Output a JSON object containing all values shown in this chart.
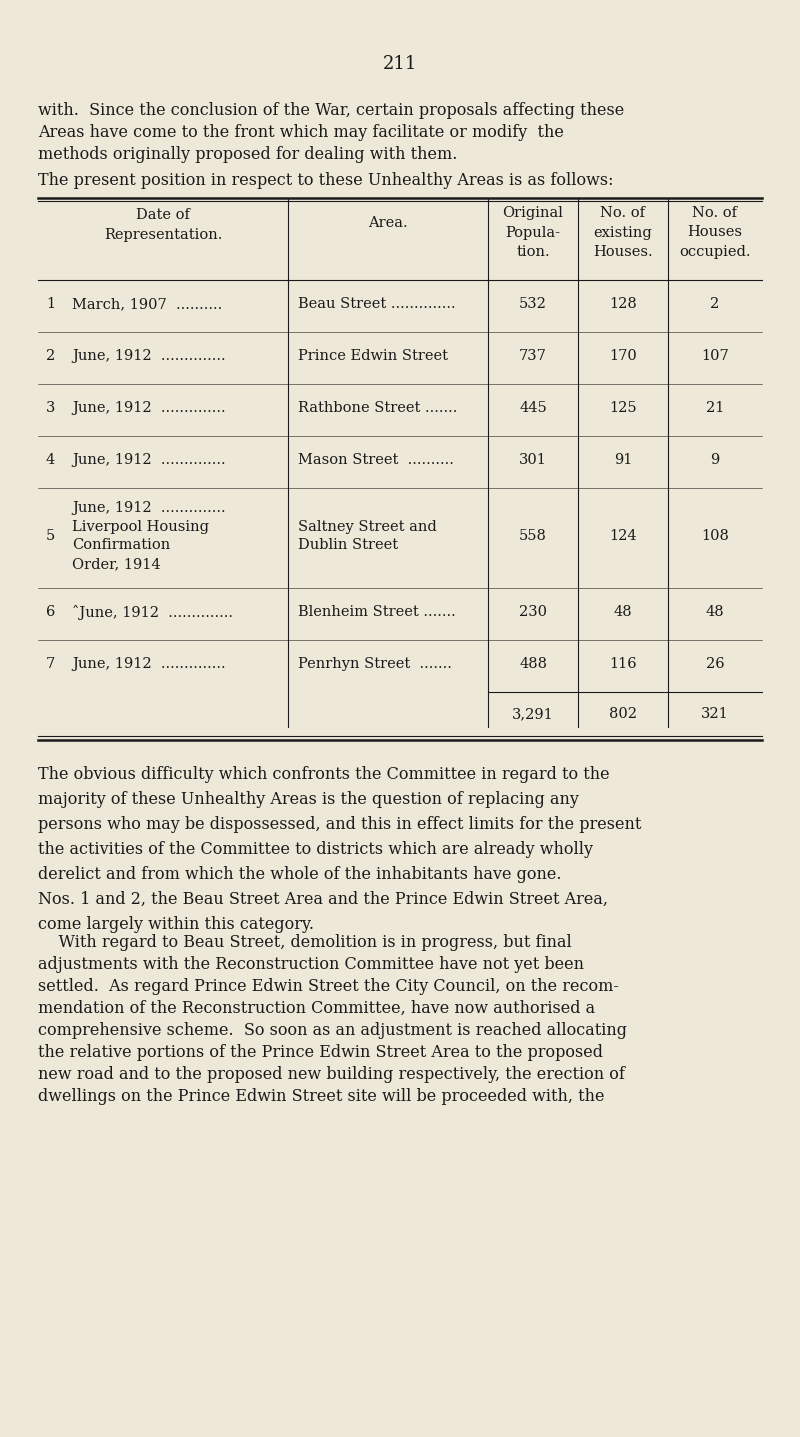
{
  "bg_color": "#ede8d8",
  "text_color": "#1a1a1a",
  "page_number": "211",
  "para1_line1": "with.  Since the conclusion of the War, certain proposals affecting these",
  "para1_line2": "Areas have come to the front which may facilitate or modify  the",
  "para1_line3": "methods originally proposed for dealing with them.",
  "para2": "The present position in respect to these Unhealthy Areas is as follows:",
  "header_col0": "Date of\nRepresentation.",
  "header_col1": "Area.",
  "header_col2": "Original\nPopula-\ntion.",
  "header_col3": "No. of\nexisting\nHouses.",
  "header_col4": "No. of\nHouses\noccupied.",
  "rows": [
    {
      "num": "1",
      "date": "March, 1907  ..........",
      "area": "Beau Street ..............",
      "pop": "532",
      "exist": "128",
      "occ": "2"
    },
    {
      "num": "2",
      "date": "June, 1912  ..............",
      "area": "Prince Edwin Street",
      "pop": "737",
      "exist": "170",
      "occ": "107"
    },
    {
      "num": "3",
      "date": "June, 1912  ..............",
      "area": "Rathbone Street .......",
      "pop": "445",
      "exist": "125",
      "occ": "21"
    },
    {
      "num": "4",
      "date": "June, 1912  ..............",
      "area": "Mason Street  ..........",
      "pop": "301",
      "exist": "91",
      "occ": "9"
    },
    {
      "num": "5",
      "date": "June, 1912  ..............\nLiverpool Housing\nConfirmation\nOrder, 1914",
      "area": "Saltney Street and\nDublin Street",
      "pop": "558",
      "exist": "124",
      "occ": "108"
    },
    {
      "num": "6",
      "date": "ˆJune, 1912  ..............",
      "area": "Blenheim Street .......",
      "pop": "230",
      "exist": "48",
      "occ": "48"
    },
    {
      "num": "7",
      "date": "June, 1912  ..............",
      "area": "Penrhyn Street  .......",
      "pop": "488",
      "exist": "116",
      "occ": "26"
    }
  ],
  "total_pop": "3,291",
  "total_exist": "802",
  "total_occ": "321",
  "para3": "The obvious difficulty which confronts the Committee in regard to the\nmajority of these Unhealthy Areas is the question of replacing any\npersons who may be dispossessed, and this in effect limits for the present\nthe activities of the Committee to districts which are already wholly\nderelict and from which the whole of the inhabitants have gone.\nNos. 1 and 2, the Beau Street Area and the Prince Edwin Street Area,\ncome largely within this category.",
  "para4_line1": "    With regard to Beau Street, demolition is in progress, but final",
  "para4_line2": "adjustments with the Reconstruction Committee have not yet been",
  "para4_line3": "settled.  As regard Prince Edwin Street the City Council, on the recom-",
  "para4_line4": "mendation of the Reconstruction Committee, have now authorised a",
  "para4_line5": "comprehensive scheme.  So soon as an adjustment is reached allocating",
  "para4_line6": "the relative portions of the Prince Edwin Street Area to the proposed",
  "para4_line7": "new road and to the proposed new building respectively, the erection of",
  "para4_line8": "dwellings on the Prince Edwin Street site will be proceeded with, the"
}
